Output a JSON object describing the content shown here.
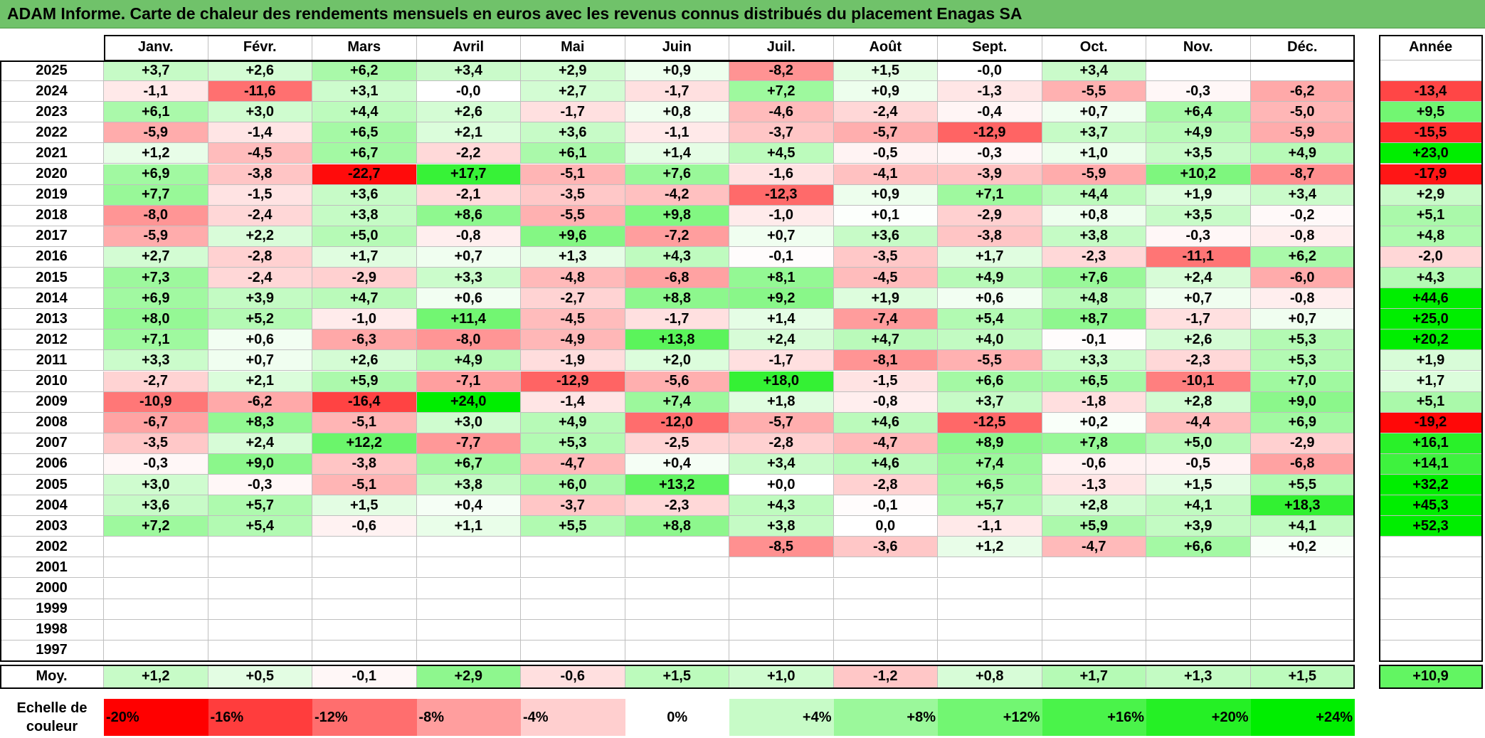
{
  "header": {
    "title": "ADAM Informe. Carte de chaleur des rendements mensuels en euros avec les revenus connus distribués du placement Enagas SA"
  },
  "chart_data": {
    "type": "heatmap",
    "months": [
      "Janv.",
      "Févr.",
      "Mars",
      "Avril",
      "Mai",
      "Juin",
      "Juil.",
      "Août",
      "Sept.",
      "Oct.",
      "Nov.",
      "Déc."
    ],
    "year_header": "Année",
    "average_label": "Moy.",
    "rows": [
      {
        "year": "2025",
        "values": [
          "+3,7",
          "+2,6",
          "+6,2",
          "+3,4",
          "+2,9",
          "+0,9",
          "-8,2",
          "+1,5",
          "-0,0",
          "+3,4",
          "",
          ""
        ],
        "annual": ""
      },
      {
        "year": "2024",
        "values": [
          "-1,1",
          "-11,6",
          "+3,1",
          "-0,0",
          "+2,7",
          "-1,7",
          "+7,2",
          "+0,9",
          "-1,3",
          "-5,5",
          "-0,3",
          "-6,2"
        ],
        "annual": "-13,4"
      },
      {
        "year": "2023",
        "values": [
          "+6,1",
          "+3,0",
          "+4,4",
          "+2,6",
          "-1,7",
          "+0,8",
          "-4,6",
          "-2,4",
          "-0,4",
          "+0,7",
          "+6,4",
          "-5,0"
        ],
        "annual": "+9,5"
      },
      {
        "year": "2022",
        "values": [
          "-5,9",
          "-1,4",
          "+6,5",
          "+2,1",
          "+3,6",
          "-1,1",
          "-3,7",
          "-5,7",
          "-12,9",
          "+3,7",
          "+4,9",
          "-5,9"
        ],
        "annual": "-15,5"
      },
      {
        "year": "2021",
        "values": [
          "+1,2",
          "-4,5",
          "+6,7",
          "-2,2",
          "+6,1",
          "+1,4",
          "+4,5",
          "-0,5",
          "-0,3",
          "+1,0",
          "+3,5",
          "+4,9"
        ],
        "annual": "+23,0"
      },
      {
        "year": "2020",
        "values": [
          "+6,9",
          "-3,8",
          "-22,7",
          "+17,7",
          "-5,1",
          "+7,6",
          "-1,6",
          "-4,1",
          "-3,9",
          "-5,9",
          "+10,2",
          "-8,7"
        ],
        "annual": "-17,9"
      },
      {
        "year": "2019",
        "values": [
          "+7,7",
          "-1,5",
          "+3,6",
          "-2,1",
          "-3,5",
          "-4,2",
          "-12,3",
          "+0,9",
          "+7,1",
          "+4,4",
          "+1,9",
          "+3,4"
        ],
        "annual": "+2,9"
      },
      {
        "year": "2018",
        "values": [
          "-8,0",
          "-2,4",
          "+3,8",
          "+8,6",
          "-5,5",
          "+9,8",
          "-1,0",
          "+0,1",
          "-2,9",
          "+0,8",
          "+3,5",
          "-0,2"
        ],
        "annual": "+5,1"
      },
      {
        "year": "2017",
        "values": [
          "-5,9",
          "+2,2",
          "+5,0",
          "-0,8",
          "+9,6",
          "-7,2",
          "+0,7",
          "+3,6",
          "-3,8",
          "+3,8",
          "-0,3",
          "-0,8"
        ],
        "annual": "+4,8"
      },
      {
        "year": "2016",
        "values": [
          "+2,7",
          "-2,8",
          "+1,7",
          "+0,7",
          "+1,3",
          "+4,3",
          "-0,1",
          "-3,5",
          "+1,7",
          "-2,3",
          "-11,1",
          "+6,2"
        ],
        "annual": "-2,0"
      },
      {
        "year": "2015",
        "values": [
          "+7,3",
          "-2,4",
          "-2,9",
          "+3,3",
          "-4,8",
          "-6,8",
          "+8,1",
          "-4,5",
          "+4,9",
          "+7,6",
          "+2,4",
          "-6,0"
        ],
        "annual": "+4,3"
      },
      {
        "year": "2014",
        "values": [
          "+6,9",
          "+3,9",
          "+4,7",
          "+0,6",
          "-2,7",
          "+8,8",
          "+9,2",
          "+1,9",
          "+0,6",
          "+4,8",
          "+0,7",
          "-0,8"
        ],
        "annual": "+44,6"
      },
      {
        "year": "2013",
        "values": [
          "+8,0",
          "+5,2",
          "-1,0",
          "+11,4",
          "-4,5",
          "-1,7",
          "+1,4",
          "-7,4",
          "+5,4",
          "+8,7",
          "-1,7",
          "+0,7"
        ],
        "annual": "+25,0"
      },
      {
        "year": "2012",
        "values": [
          "+7,1",
          "+0,6",
          "-6,3",
          "-8,0",
          "-4,9",
          "+13,8",
          "+2,4",
          "+4,7",
          "+4,0",
          "-0,1",
          "+2,6",
          "+5,3"
        ],
        "annual": "+20,2"
      },
      {
        "year": "2011",
        "values": [
          "+3,3",
          "+0,7",
          "+2,6",
          "+4,9",
          "-1,9",
          "+2,0",
          "-1,7",
          "-8,1",
          "-5,5",
          "+3,3",
          "-2,3",
          "+5,3"
        ],
        "annual": "+1,9"
      },
      {
        "year": "2010",
        "values": [
          "-2,7",
          "+2,1",
          "+5,9",
          "-7,1",
          "-12,9",
          "-5,6",
          "+18,0",
          "-1,5",
          "+6,6",
          "+6,5",
          "-10,1",
          "+7,0"
        ],
        "annual": "+1,7"
      },
      {
        "year": "2009",
        "values": [
          "-10,9",
          "-6,2",
          "-16,4",
          "+24,0",
          "-1,4",
          "+7,4",
          "+1,8",
          "-0,8",
          "+3,7",
          "-1,8",
          "+2,8",
          "+9,0"
        ],
        "annual": "+5,1"
      },
      {
        "year": "2008",
        "values": [
          "-6,7",
          "+8,3",
          "-5,1",
          "+3,0",
          "+4,9",
          "-12,0",
          "-5,7",
          "+4,6",
          "-12,5",
          "+0,2",
          "-4,4",
          "+6,9"
        ],
        "annual": "-19,2"
      },
      {
        "year": "2007",
        "values": [
          "-3,5",
          "+2,4",
          "+12,2",
          "-7,7",
          "+5,3",
          "-2,5",
          "-2,8",
          "-4,7",
          "+8,9",
          "+7,8",
          "+5,0",
          "-2,9"
        ],
        "annual": "+16,1"
      },
      {
        "year": "2006",
        "values": [
          "-0,3",
          "+9,0",
          "-3,8",
          "+6,7",
          "-4,7",
          "+0,4",
          "+3,4",
          "+4,6",
          "+7,4",
          "-0,6",
          "-0,5",
          "-6,8"
        ],
        "annual": "+14,1"
      },
      {
        "year": "2005",
        "values": [
          "+3,0",
          "-0,3",
          "-5,1",
          "+3,8",
          "+6,0",
          "+13,2",
          "+0,0",
          "-2,8",
          "+6,5",
          "-1,3",
          "+1,5",
          "+5,5"
        ],
        "annual": "+32,2"
      },
      {
        "year": "2004",
        "values": [
          "+3,6",
          "+5,7",
          "+1,5",
          "+0,4",
          "-3,7",
          "-2,3",
          "+4,3",
          "-0,1",
          "+5,7",
          "+2,8",
          "+4,1",
          "+18,3"
        ],
        "annual": "+45,3"
      },
      {
        "year": "2003",
        "values": [
          "+7,2",
          "+5,4",
          "-0,6",
          "+1,1",
          "+5,5",
          "+8,8",
          "+3,8",
          "0,0",
          "-1,1",
          "+5,9",
          "+3,9",
          "+4,1"
        ],
        "annual": "+52,3"
      },
      {
        "year": "2002",
        "values": [
          "",
          "",
          "",
          "",
          "",
          "",
          "-8,5",
          "-3,6",
          "+1,2",
          "-4,7",
          "+6,6",
          "+0,2"
        ],
        "annual": ""
      },
      {
        "year": "2001",
        "values": [
          "",
          "",
          "",
          "",
          "",
          "",
          "",
          "",
          "",
          "",
          "",
          ""
        ],
        "annual": ""
      },
      {
        "year": "2000",
        "values": [
          "",
          "",
          "",
          "",
          "",
          "",
          "",
          "",
          "",
          "",
          "",
          ""
        ],
        "annual": ""
      },
      {
        "year": "1999",
        "values": [
          "",
          "",
          "",
          "",
          "",
          "",
          "",
          "",
          "",
          "",
          "",
          ""
        ],
        "annual": ""
      },
      {
        "year": "1998",
        "values": [
          "",
          "",
          "",
          "",
          "",
          "",
          "",
          "",
          "",
          "",
          "",
          ""
        ],
        "annual": ""
      },
      {
        "year": "1997",
        "values": [
          "",
          "",
          "",
          "",
          "",
          "",
          "",
          "",
          "",
          "",
          "",
          ""
        ],
        "annual": ""
      }
    ],
    "average": {
      "values": [
        "+1,2",
        "+0,5",
        "-0,1",
        "+2,9",
        "-0,6",
        "+1,5",
        "+1,0",
        "-1,2",
        "+0,8",
        "+1,7",
        "+1,3",
        "+1,5"
      ],
      "annual": "+10,9"
    },
    "legend": {
      "title": "Echelle de couleur",
      "labels": [
        "-20%",
        "-16%",
        "-12%",
        "-8%",
        "-4%",
        "0%",
        "+4%",
        "+8%",
        "+12%",
        "+16%",
        "+20%",
        "+24%"
      ],
      "values": [
        -20,
        -16,
        -12,
        -8,
        -4,
        0,
        4,
        8,
        12,
        16,
        20,
        24
      ]
    },
    "color_scale": {
      "negative_full": "#ff0000",
      "positive_full": "#00ee00",
      "neutral": "#ffffff",
      "monthly_saturation_abs": 24,
      "annual_saturation_abs": 20
    }
  }
}
